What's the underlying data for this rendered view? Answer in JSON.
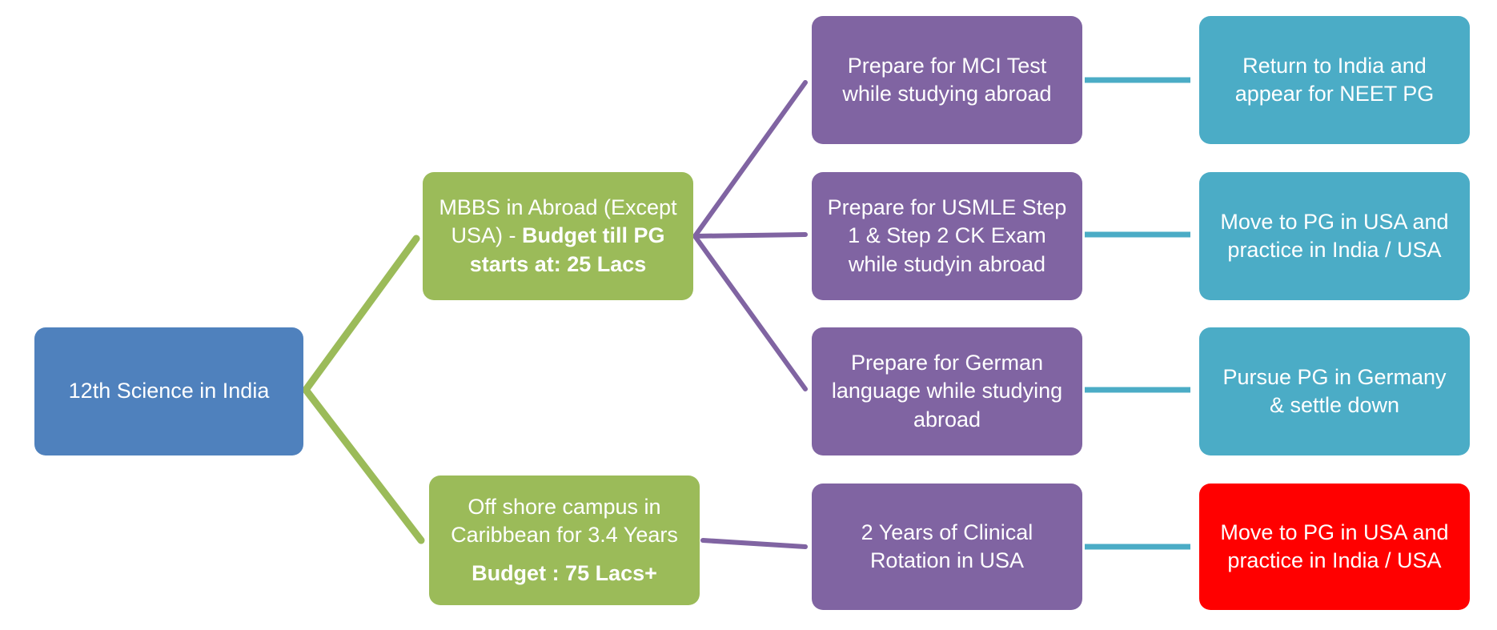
{
  "colors": {
    "root": "#4f81bd",
    "level1": "#9bbb59",
    "level2": "#8064a2",
    "level3": "#4bacc6",
    "highlight": "#ff0000",
    "connector_green": "#9bbb59",
    "connector_purple": "#8064a2",
    "connector_teal": "#4bacc6"
  },
  "root": {
    "label": "12th Science in India"
  },
  "branches": [
    {
      "line1": "MBBS in Abroad (Except",
      "line2_plain": "USA) - ",
      "line2_bold": "Budget till PG",
      "line3_bold": "starts at: 25 Lacs",
      "paths": [
        {
          "step": {
            "line1": "Prepare for MCI Test",
            "line2": "while studying abroad"
          },
          "outcome": {
            "line1": "Return to India and",
            "line2": "appear for NEET PG"
          }
        },
        {
          "step": {
            "line1": "Prepare for USMLE Step",
            "line2": "1 & Step 2 CK Exam",
            "line3": "while studyin abroad"
          },
          "outcome": {
            "line1": "Move to PG in USA and",
            "line2": "practice in India / USA"
          }
        },
        {
          "step": {
            "line1": "Prepare for German",
            "line2": "language while studying",
            "line3": "abroad"
          },
          "outcome": {
            "line1": "Pursue PG in Germany",
            "line2": "& settle  down"
          }
        }
      ]
    },
    {
      "line1": "Off shore campus in",
      "line2": "Caribbean for 3.4 Years",
      "line3_bold": "Budget : 75 Lacs+",
      "paths": [
        {
          "step": {
            "line1": "2 Years of Clinical",
            "line2": "Rotation in USA"
          },
          "outcome": {
            "line1": "Move to PG in USA and",
            "line2": "practice in India / USA"
          }
        }
      ]
    }
  ]
}
